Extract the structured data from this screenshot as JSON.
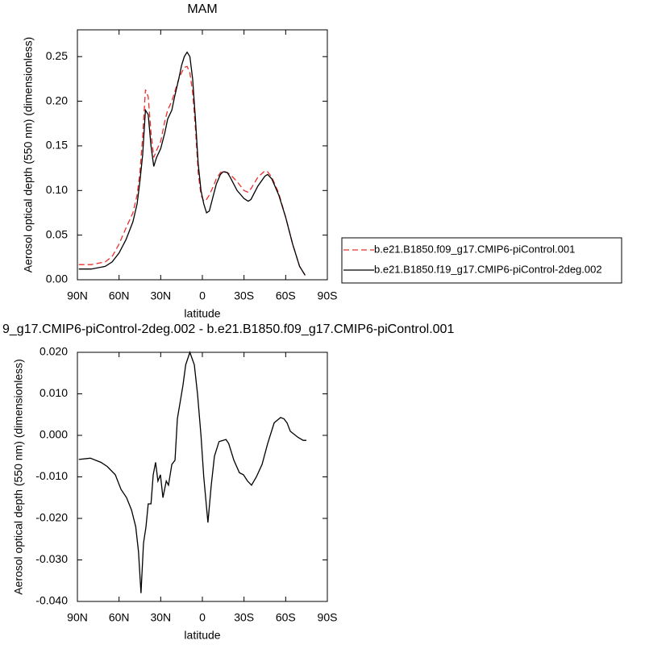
{
  "chart_data": [
    {
      "type": "line",
      "title": "MAM",
      "xlabel": "latitude",
      "ylabel": "Aerosol optical depth (550 nm) (dimensionless)",
      "xlim": [
        90,
        -90
      ],
      "xticks": [
        {
          "value": 90,
          "label": "90N"
        },
        {
          "value": 60,
          "label": "60N"
        },
        {
          "value": 30,
          "label": "30N"
        },
        0,
        {
          "value": -30,
          "label": "30S"
        },
        {
          "value": -60,
          "label": "60S"
        },
        {
          "value": -90,
          "label": "90S"
        }
      ],
      "ylim": [
        0,
        0.28
      ],
      "yticks": [
        {
          "value": 0,
          "label": "0.00"
        },
        {
          "value": 0.05,
          "label": "0.05"
        },
        {
          "value": 0.1,
          "label": "0.10"
        },
        {
          "value": 0.15,
          "label": "0.15"
        },
        {
          "value": 0.2,
          "label": "0.20"
        },
        {
          "value": 0.25,
          "label": "0.25"
        }
      ],
      "legend": "right",
      "x": [
        89,
        80,
        70,
        65,
        60,
        55,
        50,
        47,
        45,
        43,
        41,
        39,
        37,
        35,
        33,
        30,
        27,
        25,
        22,
        20,
        17,
        15,
        13,
        11,
        9,
        7,
        5,
        3,
        1,
        -1,
        -3,
        -5,
        -8,
        -10,
        -13,
        -15,
        -18,
        -20,
        -25,
        -30,
        -33,
        -35,
        -40,
        -45,
        -47,
        -50,
        -55,
        -60,
        -65,
        -70,
        -74
      ],
      "series": [
        {
          "name": "b.e21.B1850.f09_g17.CMIP6-piControl.001",
          "color": "#e8302c",
          "line_style": "dashed",
          "values": [
            0.017,
            0.017,
            0.02,
            0.026,
            0.04,
            0.058,
            0.075,
            0.095,
            0.12,
            0.16,
            0.213,
            0.205,
            0.165,
            0.137,
            0.145,
            0.155,
            0.178,
            0.19,
            0.2,
            0.21,
            0.225,
            0.232,
            0.238,
            0.239,
            0.232,
            0.21,
            0.17,
            0.12,
            0.095,
            0.088,
            0.09,
            0.095,
            0.105,
            0.113,
            0.12,
            0.122,
            0.12,
            0.118,
            0.11,
            0.1,
            0.098,
            0.102,
            0.115,
            0.122,
            0.121,
            0.115,
            0.097,
            0.07,
            0.04,
            0.015,
            0.005
          ]
        },
        {
          "name": "b.e21.B1850.f19_g17.CMIP6-piControl-2deg.002",
          "color": "#000000",
          "line_style": "solid",
          "values": [
            0.012,
            0.012,
            0.015,
            0.02,
            0.03,
            0.045,
            0.065,
            0.085,
            0.11,
            0.14,
            0.19,
            0.185,
            0.15,
            0.127,
            0.137,
            0.147,
            0.165,
            0.18,
            0.19,
            0.205,
            0.225,
            0.24,
            0.25,
            0.255,
            0.25,
            0.225,
            0.18,
            0.13,
            0.1,
            0.085,
            0.075,
            0.077,
            0.095,
            0.107,
            0.118,
            0.121,
            0.12,
            0.115,
            0.1,
            0.091,
            0.088,
            0.09,
            0.105,
            0.116,
            0.118,
            0.113,
            0.095,
            0.07,
            0.04,
            0.015,
            0.005
          ]
        }
      ]
    },
    {
      "type": "line",
      "title": "9_g17.CMIP6-piControl-2deg.002 - b.e21.B1850.f09_g17.CMIP6-piControl.001",
      "xlabel": "latitude",
      "ylabel": "Aerosol optical depth (550 nm) (dimensionless)",
      "xlim": [
        90,
        -90
      ],
      "xticks": [
        {
          "value": 90,
          "label": "90N"
        },
        {
          "value": 60,
          "label": "60N"
        },
        {
          "value": 30,
          "label": "30N"
        },
        0,
        {
          "value": -30,
          "label": "30S"
        },
        {
          "value": -60,
          "label": "60S"
        },
        {
          "value": -90,
          "label": "90S"
        }
      ],
      "ylim": [
        -0.04,
        0.02
      ],
      "yticks": [
        {
          "value": -0.04,
          "label": "-0.040"
        },
        {
          "value": -0.03,
          "label": "-0.030"
        },
        {
          "value": -0.02,
          "label": "-0.020"
        },
        {
          "value": -0.01,
          "label": "-0.010"
        },
        {
          "value": 0,
          "label": "0.000"
        },
        {
          "value": 0.01,
          "label": "0.010"
        },
        {
          "value": 0.02,
          "label": "0.020"
        }
      ],
      "x": [
        89,
        80.7,
        73,
        68.5,
        62.7,
        58.6,
        54.6,
        51,
        48,
        46,
        44.2,
        42.4,
        40.6,
        39,
        37,
        35.4,
        33.7,
        32,
        30.2,
        28.4,
        26,
        24.4,
        22,
        19.7,
        18,
        14,
        12,
        9,
        5.8,
        3.5,
        1,
        -1,
        -4,
        -6.4,
        -8.7,
        -12,
        -17,
        -19,
        -22.7,
        -26.7,
        -29.6,
        -32.5,
        -35.4,
        -38.9,
        -43,
        -47,
        -51.7,
        -56.3,
        -58.7,
        -61,
        -63.3,
        -69,
        -72.6,
        -74.9
      ],
      "series": [
        {
          "color": "#000000",
          "line_style": "solid",
          "values": [
            -0.0058,
            -0.0055,
            -0.0065,
            -0.0075,
            -0.0095,
            -0.013,
            -0.015,
            -0.018,
            -0.022,
            -0.028,
            -0.038,
            -0.026,
            -0.022,
            -0.0165,
            -0.0165,
            -0.0095,
            -0.0065,
            -0.011,
            -0.0095,
            -0.015,
            -0.011,
            -0.012,
            -0.007,
            -0.006,
            0.004,
            0.012,
            0.017,
            0.02,
            0.017,
            0.01,
            0,
            -0.01,
            -0.021,
            -0.012,
            -0.005,
            -0.0015,
            -0.001,
            -0.002,
            -0.006,
            -0.009,
            -0.0095,
            -0.011,
            -0.012,
            -0.01,
            -0.007,
            -0.002,
            0.003,
            0.0043,
            0.004,
            0.003,
            0.001,
            -0.0005,
            -0.0012,
            -0.0012
          ]
        }
      ]
    }
  ]
}
